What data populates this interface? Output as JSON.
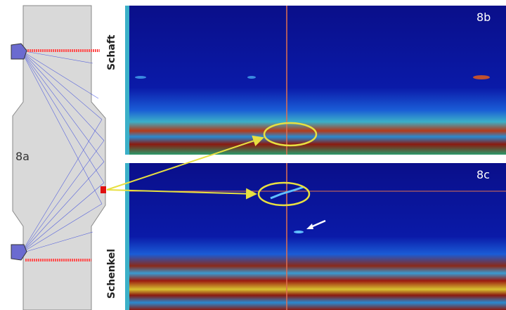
{
  "panel_a": {
    "label": "8a",
    "top_label": "Schaft",
    "bottom_label": "Schenkel"
  },
  "panel_b": {
    "label": "8b"
  },
  "panel_c": {
    "label": "8c"
  }
}
